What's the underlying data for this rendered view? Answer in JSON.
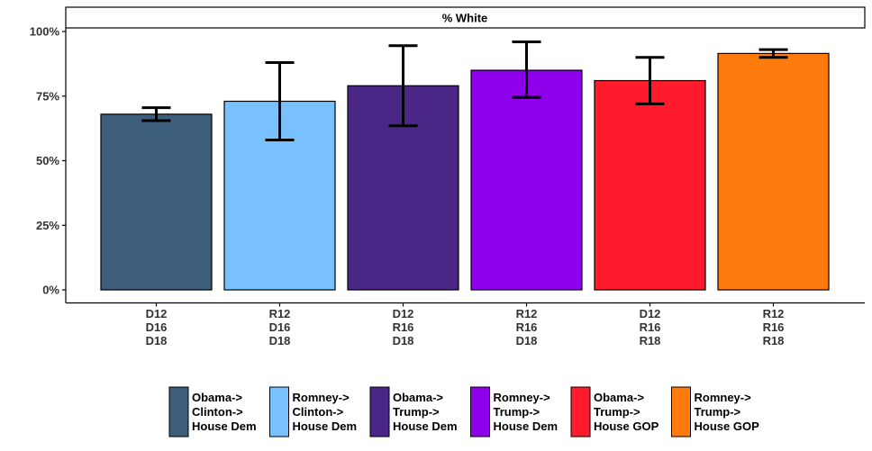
{
  "chart_data": {
    "type": "bar",
    "title": "% White",
    "xlabel": "",
    "ylabel": "",
    "ylim": [
      0,
      1.05
    ],
    "yticks": [
      0,
      0.25,
      0.5,
      0.75,
      1.0
    ],
    "ytick_labels": [
      "0%",
      "25%",
      "50%",
      "75%",
      "100%"
    ],
    "categories": [
      [
        "D12",
        "D16",
        "D18"
      ],
      [
        "R12",
        "D16",
        "D18"
      ],
      [
        "D12",
        "R16",
        "D18"
      ],
      [
        "R12",
        "R16",
        "D18"
      ],
      [
        "D12",
        "R16",
        "R18"
      ],
      [
        "R12",
        "R16",
        "R18"
      ]
    ],
    "values": [
      0.68,
      0.73,
      0.79,
      0.85,
      0.81,
      0.915
    ],
    "error_low": [
      0.655,
      0.58,
      0.635,
      0.745,
      0.72,
      0.9
    ],
    "error_high": [
      0.705,
      0.88,
      0.945,
      0.96,
      0.9,
      0.93
    ],
    "colors": [
      "#3C5E7C",
      "#78C1FD",
      "#4A2787",
      "#8E00EC",
      "#FF1B2B",
      "#FF7B0E"
    ],
    "legend": [
      {
        "lines": [
          "Obama->",
          "Clinton->",
          "House Dem"
        ],
        "color": "#3C5E7C"
      },
      {
        "lines": [
          "Romney->",
          "Clinton->",
          "House Dem"
        ],
        "color": "#78C1FD"
      },
      {
        "lines": [
          "Obama->",
          "Trump->",
          "House Dem"
        ],
        "color": "#4A2787"
      },
      {
        "lines": [
          "Romney->",
          "Trump->",
          "House Dem"
        ],
        "color": "#8E00EC"
      },
      {
        "lines": [
          "Obama->",
          "Trump->",
          "House GOP"
        ],
        "color": "#FF1B2B"
      },
      {
        "lines": [
          "Romney->",
          "Trump->",
          "House GOP"
        ],
        "color": "#FF7B0E"
      }
    ],
    "legend_position": "bottom",
    "grid": false
  }
}
